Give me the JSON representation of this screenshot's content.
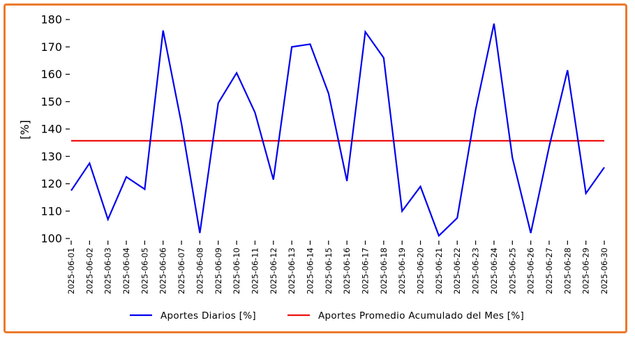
{
  "chart_data": {
    "type": "line",
    "title": "",
    "xlabel": "",
    "ylabel": "[%]",
    "ylim": [
      100,
      180
    ],
    "yticks": [
      100,
      110,
      120,
      130,
      140,
      150,
      160,
      170,
      180
    ],
    "grid": false,
    "legend_position": "bottom",
    "x": [
      "2025-06-01",
      "2025-06-02",
      "2025-06-03",
      "2025-06-04",
      "2025-06-05",
      "2025-06-06",
      "2025-06-07",
      "2025-06-08",
      "2025-06-09",
      "2025-06-10",
      "2025-06-11",
      "2025-06-12",
      "2025-06-13",
      "2025-06-14",
      "2025-06-15",
      "2025-06-16",
      "2025-06-17",
      "2025-06-18",
      "2025-06-19",
      "2025-06-20",
      "2025-06-21",
      "2025-06-22",
      "2025-06-23",
      "2025-06-24",
      "2025-06-25",
      "2025-06-26",
      "2025-06-27",
      "2025-06-28",
      "2025-06-29",
      "2025-06-30"
    ],
    "series": [
      {
        "name": "Aportes Diarios [%]",
        "color": "#0000ee",
        "values": [
          117.5,
          127.5,
          107,
          122.5,
          118,
          176,
          142,
          102,
          149.5,
          160.5,
          146,
          121.5,
          170,
          171,
          153,
          121,
          175.5,
          166,
          110,
          119,
          101,
          107.5,
          147,
          178.5,
          129.5,
          102,
          133.5,
          161.5,
          116.5,
          126
        ]
      },
      {
        "name": "Aportes Promedio Acumulado del Mes [%]",
        "color": "#ee1111",
        "values": [
          135.7,
          135.7,
          135.7,
          135.7,
          135.7,
          135.7,
          135.7,
          135.7,
          135.7,
          135.7,
          135.7,
          135.7,
          135.7,
          135.7,
          135.7,
          135.7,
          135.7,
          135.7,
          135.7,
          135.7,
          135.7,
          135.7,
          135.7,
          135.7,
          135.7,
          135.7,
          135.7,
          135.7,
          135.7,
          135.7
        ]
      }
    ]
  }
}
